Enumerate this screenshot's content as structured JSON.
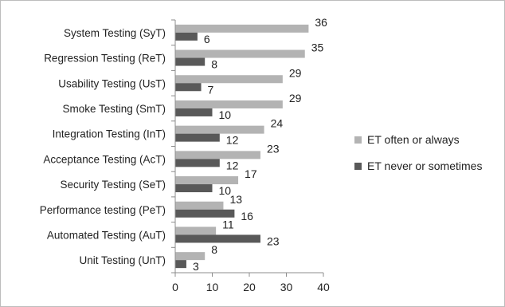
{
  "chart_data": {
    "type": "bar",
    "orientation": "horizontal",
    "categories": [
      "System Testing (SyT)",
      "Regression Testing (ReT)",
      "Usability Testing (UsT)",
      "Smoke Testing (SmT)",
      "Integration Testing (InT)",
      "Acceptance Testing (AcT)",
      "Security Testing (SeT)",
      "Performance testing (PeT)",
      "Automated Testing (AuT)",
      "Unit Testing (UnT)"
    ],
    "series": [
      {
        "name": "ET often or always",
        "color": "#b3b3b3",
        "values": [
          36,
          35,
          29,
          29,
          24,
          23,
          17,
          13,
          11,
          8
        ]
      },
      {
        "name": "ET never or sometimes",
        "color": "#595959",
        "values": [
          6,
          8,
          7,
          10,
          12,
          12,
          10,
          16,
          23,
          3
        ]
      }
    ],
    "xlim": [
      0,
      40
    ],
    "xticks": [
      0,
      10,
      20,
      30,
      40
    ],
    "title": "",
    "xlabel": "",
    "ylabel": "",
    "grid": false,
    "legend_position": "right",
    "data_labels": true
  }
}
